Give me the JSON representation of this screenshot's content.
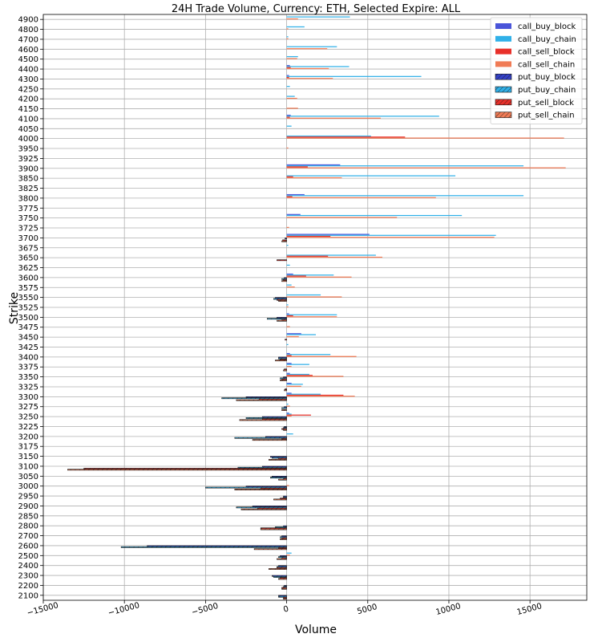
{
  "chart_data": {
    "type": "bar",
    "orientation": "horizontal",
    "title": "24H Trade Volume, Currency: ETH, Selected Expire: ALL",
    "xlabel": "Volume",
    "ylabel": "Strike",
    "xlim": [
      -15000,
      18500
    ],
    "xticks": [
      -15000,
      -10000,
      -5000,
      0,
      5000,
      10000,
      15000
    ],
    "xtick_labels": [
      "−15000",
      "−10000",
      "−5000",
      "0",
      "5000",
      "10000",
      "15000"
    ],
    "grid": true,
    "legend_position": "top-right",
    "categories": [
      "4900",
      "4800",
      "4700",
      "4600",
      "4500",
      "4400",
      "4300",
      "4250",
      "4200",
      "4150",
      "4100",
      "4050",
      "4000",
      "3950",
      "3925",
      "3900",
      "3850",
      "3825",
      "3800",
      "3775",
      "3750",
      "3725",
      "3700",
      "3675",
      "3650",
      "3625",
      "3600",
      "3575",
      "3550",
      "3525",
      "3500",
      "3475",
      "3450",
      "3425",
      "3400",
      "3375",
      "3350",
      "3325",
      "3300",
      "3275",
      "3250",
      "3225",
      "3200",
      "3175",
      "3150",
      "3100",
      "3050",
      "3000",
      "2950",
      "2900",
      "2850",
      "2800",
      "2700",
      "2600",
      "2500",
      "2400",
      "2300",
      "2200",
      "2100"
    ],
    "series": [
      {
        "name": "call_buy_block",
        "color": "#4a55d9",
        "hatch": false,
        "values": {
          "4400": 200,
          "4300": 150,
          "4100": 250,
          "3900": 3300,
          "3800": 1100,
          "3750": 850,
          "3700": 5100,
          "3600": 400,
          "3500": 150,
          "3450": 900,
          "3400": 200,
          "3375": 300,
          "3350": 200,
          "3325": 300,
          "3300": 300,
          "3250": 150
        }
      },
      {
        "name": "call_buy_chain",
        "color": "#30b0e8",
        "hatch": false,
        "values": {
          "4900": 3900,
          "4800": 1100,
          "4700": 100,
          "4600": 3100,
          "4500": 700,
          "4400": 3850,
          "4300": 8300,
          "4250": 200,
          "4200": 500,
          "4100": 9400,
          "4050": 300,
          "4000": 5200,
          "3900": 14600,
          "3850": 10400,
          "3800": 14600,
          "3750": 10800,
          "3700": 12900,
          "3675": 100,
          "3650": 5500,
          "3625": 200,
          "3600": 2900,
          "3575": 300,
          "3550": 2100,
          "3525": 100,
          "3500": 3100,
          "3450": 1800,
          "3425": 100,
          "3400": 2700,
          "3375": 1400,
          "3350": 1400,
          "3325": 1000,
          "3300": 2100,
          "3275": 100,
          "3250": 300,
          "3200": 400,
          "2500": 300
        }
      },
      {
        "name": "call_sell_block",
        "color": "#e8302a",
        "hatch": false,
        "values": {
          "4400": 250,
          "4300": 150,
          "4100": 200,
          "4000": 7300,
          "3900": 1300,
          "3850": 400,
          "3800": 350,
          "3700": 2700,
          "3650": 2550,
          "3600": 1200,
          "3500": 400,
          "3400": 300,
          "3350": 1600,
          "3300": 3500,
          "3250": 1500
        }
      },
      {
        "name": "call_sell_chain",
        "color": "#f07b55",
        "hatch": false,
        "values": {
          "4900": 700,
          "4800": 100,
          "4700": 100,
          "4600": 2500,
          "4500": 650,
          "4400": 2600,
          "4300": 2850,
          "4200": 650,
          "4150": 700,
          "4100": 5800,
          "4000": 17100,
          "3950": 100,
          "3900": 17200,
          "3850": 3400,
          "3800": 9200,
          "3750": 6800,
          "3725": 150,
          "3700": 12800,
          "3650": 5900,
          "3600": 4000,
          "3575": 500,
          "3550": 3400,
          "3525": 100,
          "3500": 3100,
          "3475": 200,
          "3450": 750,
          "3400": 4300,
          "3375": 300,
          "3350": 3500,
          "3325": 900,
          "3300": 4200,
          "3275": 200,
          "3250": 300,
          "3000": 150,
          "2500": 200
        }
      },
      {
        "name": "put_buy_block",
        "color": "#3340c8",
        "hatch": true,
        "values": {
          "3700": 100,
          "3600": 150,
          "3550": 700,
          "3500": 600,
          "3400": 500,
          "3350": 200,
          "3300": 2500,
          "3275": 150,
          "3250": 1500,
          "3225": 150,
          "3200": 1300,
          "3150": 1000,
          "3100": 1500,
          "3050": 900,
          "3000": 2500,
          "2950": 200,
          "2900": 2100,
          "2800": 200,
          "2700": 300,
          "2600": 8600,
          "2500": 400,
          "2400": 500,
          "2300": 900,
          "2200": 150,
          "2100": 500
        }
      },
      {
        "name": "put_buy_chain",
        "color": "#30b0e8",
        "hatch": true,
        "values": {
          "3600": 300,
          "3550": 800,
          "3500": 1200,
          "3400": 500,
          "3350": 400,
          "3300": 4000,
          "3275": 300,
          "3250": 2500,
          "3225": 200,
          "3200": 3200,
          "3150": 900,
          "3100": 3000,
          "3050": 1000,
          "3000": 5000,
          "2950": 200,
          "2900": 3100,
          "2800": 700,
          "2700": 400,
          "2600": 10200,
          "2500": 500,
          "2400": 600,
          "2300": 800,
          "2200": 200,
          "2100": 500
        }
      },
      {
        "name": "put_sell_block",
        "color": "#e8302a",
        "hatch": true,
        "values": {
          "3700": 250,
          "3650": 600,
          "3600": 200,
          "3550": 600,
          "3500": 300,
          "3450": 100,
          "3400": 400,
          "3375": 150,
          "3350": 300,
          "3325": 100,
          "3300": 1700,
          "3250": 1500,
          "3225": 300,
          "3200": 300,
          "3150": 500,
          "3100": 12500,
          "3050": 200,
          "3000": 1600,
          "2950": 400,
          "2900": 1800,
          "2800": 1600,
          "2700": 300,
          "2600": 500,
          "2500": 300,
          "2400": 600,
          "2300": 400,
          "2200": 300,
          "2100": 200
        }
      },
      {
        "name": "put_sell_chain",
        "color": "#f07b55",
        "hatch": true,
        "values": {
          "3700": 300,
          "3600": 300,
          "3550": 500,
          "3500": 600,
          "3400": 700,
          "3375": 200,
          "3350": 400,
          "3325": 150,
          "3300": 3100,
          "3275": 300,
          "3250": 2900,
          "3225": 200,
          "3200": 2100,
          "3150": 1100,
          "3100": 13500,
          "3050": 500,
          "3000": 3200,
          "2950": 800,
          "2900": 2800,
          "2800": 1600,
          "2700": 400,
          "2600": 2000,
          "2500": 600,
          "2400": 1100,
          "2300": 500,
          "2200": 300,
          "2100": 200
        }
      }
    ]
  }
}
